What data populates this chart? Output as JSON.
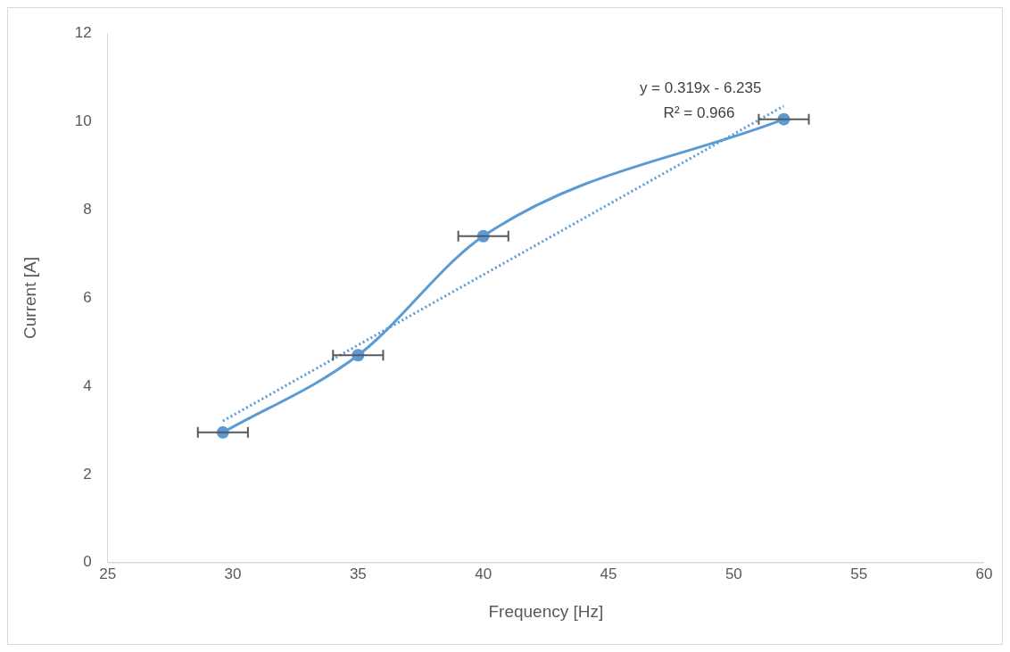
{
  "chart_data": {
    "type": "line",
    "xlabel": "Frequency [Hz]",
    "ylabel": "Current [A]",
    "xlim": [
      25,
      60
    ],
    "xticks": [
      25,
      30,
      35,
      40,
      45,
      50,
      55,
      60
    ],
    "ylim": [
      0,
      12
    ],
    "yticks": [
      0,
      2,
      4,
      6,
      8,
      10,
      12
    ],
    "grid": false,
    "legend": false,
    "marker": "circle",
    "series": [
      {
        "color": "#5b9bd5",
        "x": [
          29.6,
          35,
          40,
          52
        ],
        "values": [
          2.95,
          4.7,
          7.4,
          10.05
        ],
        "xerrors": [
          1,
          1,
          1,
          1
        ],
        "line_style": "solid"
      },
      {
        "type": "line",
        "color": "#5b9bd5",
        "x": [
          29.6,
          52
        ],
        "values": [
          3.21,
          10.35
        ],
        "line_style": "dotted",
        "marker": "none"
      }
    ],
    "annotations": [
      "y = 0.319x - 6.235",
      "R² = 0.966"
    ]
  }
}
